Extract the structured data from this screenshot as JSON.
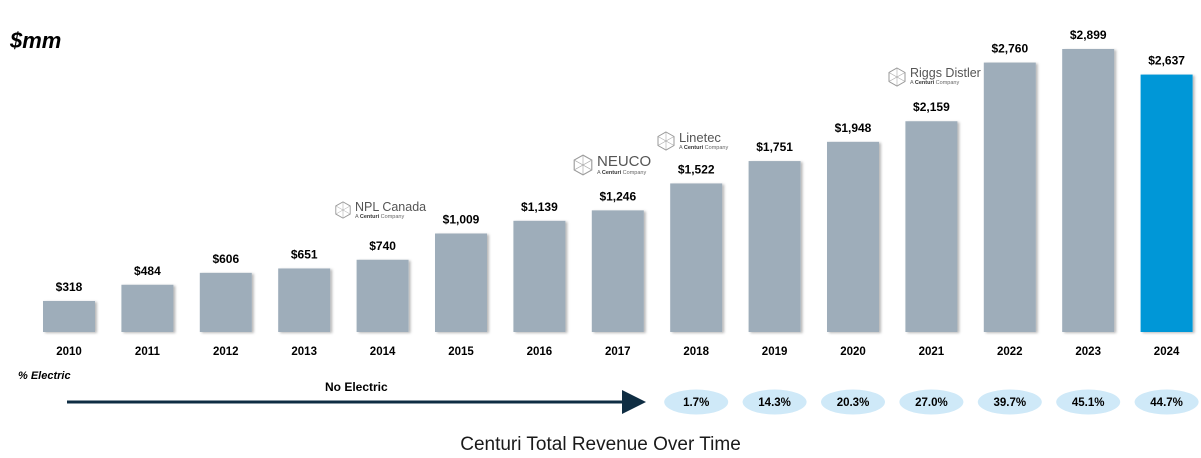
{
  "unit_label": "$mm",
  "electric_label": "% Electric",
  "no_electric_label": "No Electric",
  "caption": "Centuri Total Revenue Over Time",
  "acquisitions": [
    {
      "name": "NPL Canada",
      "sub_a": "A ",
      "sub_b": "Centuri",
      "sub_c": " Company",
      "year": "2014"
    },
    {
      "name": "NEUCO",
      "sub_a": "A ",
      "sub_b": "Centuri",
      "sub_c": " Company",
      "year": "2017"
    },
    {
      "name": "Linetec",
      "sub_a": "A ",
      "sub_b": "Centuri",
      "sub_c": " Company",
      "year": "2018"
    },
    {
      "name": "Riggs Distler",
      "sub_a": "A ",
      "sub_b": "Centuri",
      "sub_c": " Company",
      "year": "2021"
    }
  ],
  "colors": {
    "bar": "#9eadba",
    "highlight": "#0097d7",
    "pill": "#cfe9f8",
    "arrow": "#0f2d43"
  },
  "chart_data": {
    "type": "bar",
    "title": "Centuri Total Revenue Over Time",
    "ylabel": "$mm",
    "xlabel": "",
    "ylim": [
      0,
      3000
    ],
    "categories": [
      "2010",
      "2011",
      "2012",
      "2013",
      "2014",
      "2015",
      "2016",
      "2017",
      "2018",
      "2019",
      "2020",
      "2021",
      "2022",
      "2023",
      "2024"
    ],
    "values": [
      318,
      484,
      606,
      651,
      740,
      1009,
      1139,
      1246,
      1522,
      1751,
      1948,
      2159,
      2760,
      2899,
      2637
    ],
    "value_labels": [
      "$318",
      "$484",
      "$606",
      "$651",
      "$740",
      "$1,009",
      "$1,139",
      "$1,246",
      "$1,522",
      "$1,751",
      "$1,948",
      "$2,159",
      "$2,760",
      "$2,899",
      "$2,637"
    ],
    "highlight_category": "2024",
    "electric_pct": {
      "categories": [
        "2018",
        "2019",
        "2020",
        "2021",
        "2022",
        "2023",
        "2024"
      ],
      "labels": [
        "1.7%",
        "14.3%",
        "20.3%",
        "27.0%",
        "39.7%",
        "45.1%",
        "44.7%"
      ],
      "values": [
        1.7,
        14.3,
        20.3,
        27.0,
        39.7,
        45.1,
        44.7
      ]
    }
  }
}
